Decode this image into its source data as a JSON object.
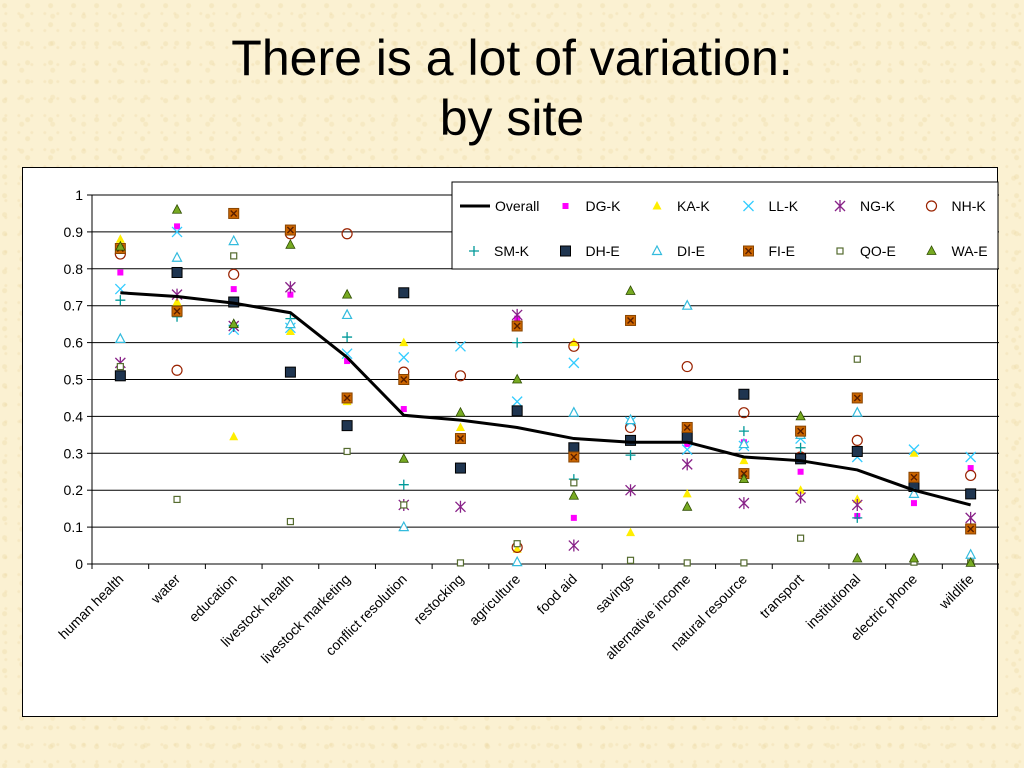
{
  "slide": {
    "title_line1": "There is a lot of variation:",
    "title_line2": "by site"
  },
  "chart_data": {
    "type": "line",
    "title": "",
    "xlabel": "",
    "ylabel": "",
    "ylim": [
      0,
      1
    ],
    "yticks": [
      0,
      0.1,
      0.2,
      0.3,
      0.4,
      0.5,
      0.6,
      0.7,
      0.8,
      0.9,
      1
    ],
    "ytick_labels": [
      "0",
      "0.1",
      "0.2",
      "0.3",
      "0.4",
      "0.5",
      "0.6",
      "0.7",
      "0.8",
      "0.9",
      "1"
    ],
    "grid": "horizontal",
    "legend_position": "top-right",
    "categories": [
      "human health",
      "water",
      "education",
      "livestock health",
      "livestock marketing",
      "conflict resolution",
      "restocking",
      "agriculture",
      "food aid",
      "savings",
      "alternative income",
      "natural resource",
      "transport",
      "institutional",
      "electric phone",
      "wildlife"
    ],
    "series": [
      {
        "name": "Overall",
        "style": "line",
        "color": "#000000",
        "values": [
          0.735,
          0.725,
          0.707,
          0.681,
          0.56,
          0.403,
          0.39,
          0.37,
          0.34,
          0.33,
          0.33,
          0.29,
          0.28,
          0.255,
          0.2,
          0.16
        ]
      },
      {
        "name": "DG-K",
        "marker": "square-small",
        "color": "#ff00ff",
        "values": [
          0.79,
          0.915,
          0.745,
          0.73,
          0.55,
          0.42,
          null,
          0.665,
          0.125,
          0.33,
          0.325,
          0.33,
          0.25,
          0.13,
          0.165,
          0.26
        ]
      },
      {
        "name": "KA-K",
        "marker": "triangle-filled",
        "color": "#ffee00",
        "values": [
          0.88,
          0.71,
          0.345,
          0.63,
          0.44,
          0.6,
          0.37,
          0.04,
          0.6,
          0.085,
          0.19,
          0.28,
          0.2,
          0.175,
          0.3,
          0.1
        ]
      },
      {
        "name": "LL-K",
        "marker": "x",
        "color": "#33ccff",
        "values": [
          0.745,
          0.9,
          0.635,
          0.64,
          0.57,
          0.56,
          0.59,
          0.44,
          0.545,
          0.385,
          0.31,
          0.32,
          0.34,
          0.29,
          0.31,
          0.29
        ]
      },
      {
        "name": "NG-K",
        "marker": "asterisk",
        "color": "#882288",
        "values": [
          0.545,
          0.73,
          0.645,
          0.75,
          null,
          0.16,
          0.155,
          0.675,
          0.05,
          0.2,
          0.27,
          0.165,
          0.18,
          0.16,
          null,
          0.125
        ]
      },
      {
        "name": "NH-K",
        "marker": "circle-open",
        "color": "#992200",
        "values": [
          0.84,
          0.525,
          0.785,
          0.895,
          0.895,
          0.52,
          0.51,
          0.045,
          0.59,
          0.37,
          0.535,
          0.41,
          0.29,
          0.335,
          null,
          0.24
        ]
      },
      {
        "name": "SM-K",
        "marker": "plus",
        "color": "#009999",
        "values": [
          0.715,
          0.67,
          0.645,
          0.665,
          0.615,
          0.215,
          null,
          0.6,
          0.23,
          0.295,
          0.34,
          0.36,
          0.315,
          0.125,
          null,
          null
        ]
      },
      {
        "name": "DH-E",
        "marker": "square-filled",
        "color": "#1f3550",
        "values": [
          0.51,
          0.79,
          0.71,
          0.52,
          0.375,
          0.735,
          0.26,
          0.415,
          0.315,
          0.335,
          0.345,
          0.46,
          0.285,
          0.305,
          0.21,
          0.19
        ]
      },
      {
        "name": "DI-E",
        "marker": "triangle-open",
        "color": "#33bbdd",
        "values": [
          0.61,
          0.83,
          0.875,
          0.65,
          0.675,
          0.1,
          null,
          0.005,
          0.41,
          0.39,
          0.7,
          0.325,
          0.35,
          0.41,
          0.19,
          0.025
        ]
      },
      {
        "name": "FI-E",
        "marker": "box-x",
        "color": "#cc6600",
        "values": [
          0.855,
          0.685,
          0.95,
          0.905,
          0.45,
          0.5,
          0.34,
          0.645,
          0.29,
          0.66,
          0.37,
          0.245,
          0.36,
          0.45,
          0.235,
          0.095
        ]
      },
      {
        "name": "QO-E",
        "marker": "square-open",
        "color": "#556b2f",
        "values": [
          0.535,
          0.175,
          0.835,
          0.115,
          0.305,
          0.16,
          0.003,
          0.055,
          0.22,
          0.01,
          0.003,
          0.003,
          0.07,
          0.555,
          0.005,
          0.003
        ]
      },
      {
        "name": "WA-E",
        "marker": "triangle-filled",
        "color": "#77aa22",
        "values": [
          0.86,
          0.96,
          0.65,
          0.865,
          0.73,
          0.285,
          0.41,
          0.5,
          0.185,
          0.74,
          0.155,
          0.23,
          0.4,
          0.015,
          0.015,
          0.003
        ]
      }
    ]
  }
}
